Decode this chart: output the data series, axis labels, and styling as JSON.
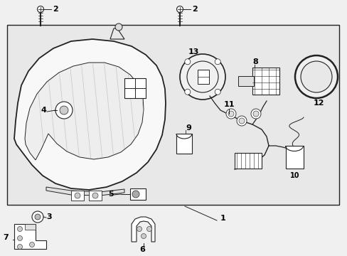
{
  "background_color": "#f0f0f0",
  "box_fill": "#e8e8e8",
  "line_color": "#222222",
  "text_color": "#000000",
  "fig_width": 4.89,
  "fig_height": 3.6,
  "dpi": 100
}
